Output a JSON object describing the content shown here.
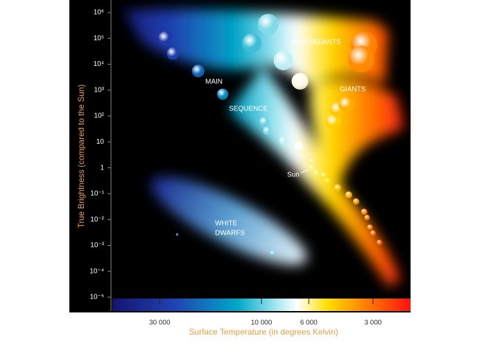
{
  "chart_data": {
    "type": "scatter",
    "x_label": "Surface Temperature (in degrees Kelvin)",
    "y_label": "True Brightness (compared to the Sun)",
    "annotations": [
      "SUPERGIANTS",
      "GIANTS",
      "MAIN",
      "SEQUENCE",
      "WHITE",
      "DWARFS",
      "Sun"
    ],
    "xscale": "log",
    "yscale": "log",
    "xlim": [
      50000,
      2000
    ],
    "ylim": [
      1e-05,
      1000000
    ],
    "xticks": [
      {
        "value": 30000,
        "label": "30 000"
      },
      {
        "value": 10000,
        "label": "10 000"
      },
      {
        "value": 6000,
        "label": "6 000"
      },
      {
        "value": 3000,
        "label": "3 000"
      }
    ],
    "yticks": [
      {
        "value": 1000000,
        "label": "10⁶"
      },
      {
        "value": 100000,
        "label": "10⁵"
      },
      {
        "value": 10000,
        "label": "10⁴"
      },
      {
        "value": 1000,
        "label": "10³"
      },
      {
        "value": 100,
        "label": "10²"
      },
      10,
      1,
      {
        "value": 0.1,
        "label": "10⁻¹"
      },
      {
        "value": 0.01,
        "label": "10⁻²"
      },
      {
        "value": 0.001,
        "label": "10⁻³"
      },
      {
        "value": 0.0001,
        "label": "10⁻⁴"
      },
      {
        "value": 1e-05,
        "label": "10⁻⁵"
      }
    ],
    "x": [
      28300,
      26000,
      19800,
      15200,
      9700,
      9400,
      7900,
      6700,
      5800,
      5800,
      5500,
      5100,
      4900,
      4400,
      3900,
      3600,
      3300,
      3200,
      3100,
      3000,
      2800,
      4600,
      4400,
      4000,
      9300,
      11100,
      7900,
      6600,
      3300,
      3400,
      24800,
      8900
    ],
    "values": [
      100000,
      26000,
      5500,
      700,
      60,
      27,
      11,
      7.3,
      1.8,
      1,
      0.6,
      0.5,
      0.3,
      0.17,
      0.09,
      0.05,
      0.02,
      0.012,
      0.005,
      0.003,
      0.0013,
      60,
      180,
      280,
      350000,
      65000,
      14000,
      2200,
      55000,
      16000,
      0.0026,
      0.00052
    ],
    "sizes": [
      10,
      9,
      9,
      8,
      7,
      6,
      6,
      6,
      5,
      5,
      5,
      5,
      5,
      5,
      5,
      4.5,
      4.5,
      4,
      4,
      4,
      4,
      11,
      11,
      11,
      15,
      14,
      14,
      12,
      19,
      19,
      2,
      3
    ]
  }
}
